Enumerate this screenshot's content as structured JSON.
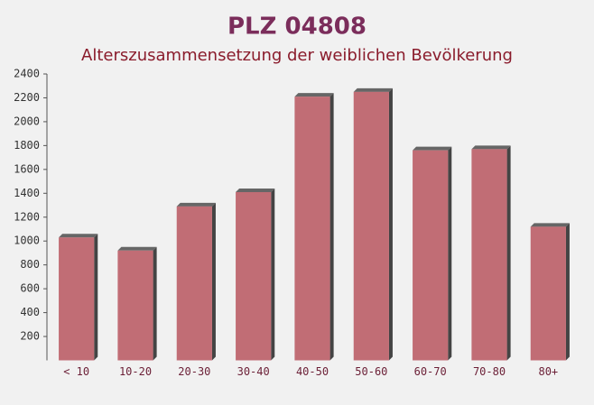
{
  "chart_data": {
    "type": "bar",
    "title": "PLZ 04808",
    "subtitle": "Alterszusammensetzung der weiblichen Bevölkerung",
    "categories": [
      "< 10",
      "10-20",
      "20-30",
      "30-40",
      "40-50",
      "50-60",
      "60-70",
      "70-80",
      "80+"
    ],
    "values": [
      1030,
      920,
      1290,
      1410,
      2210,
      2250,
      1760,
      1770,
      1120
    ],
    "color": "#b8565f",
    "ylim": [
      0,
      2400
    ],
    "yticks": [
      200,
      400,
      600,
      800,
      1000,
      1200,
      1400,
      1600,
      1800,
      2000,
      2200,
      2400
    ],
    "grid": false
  }
}
